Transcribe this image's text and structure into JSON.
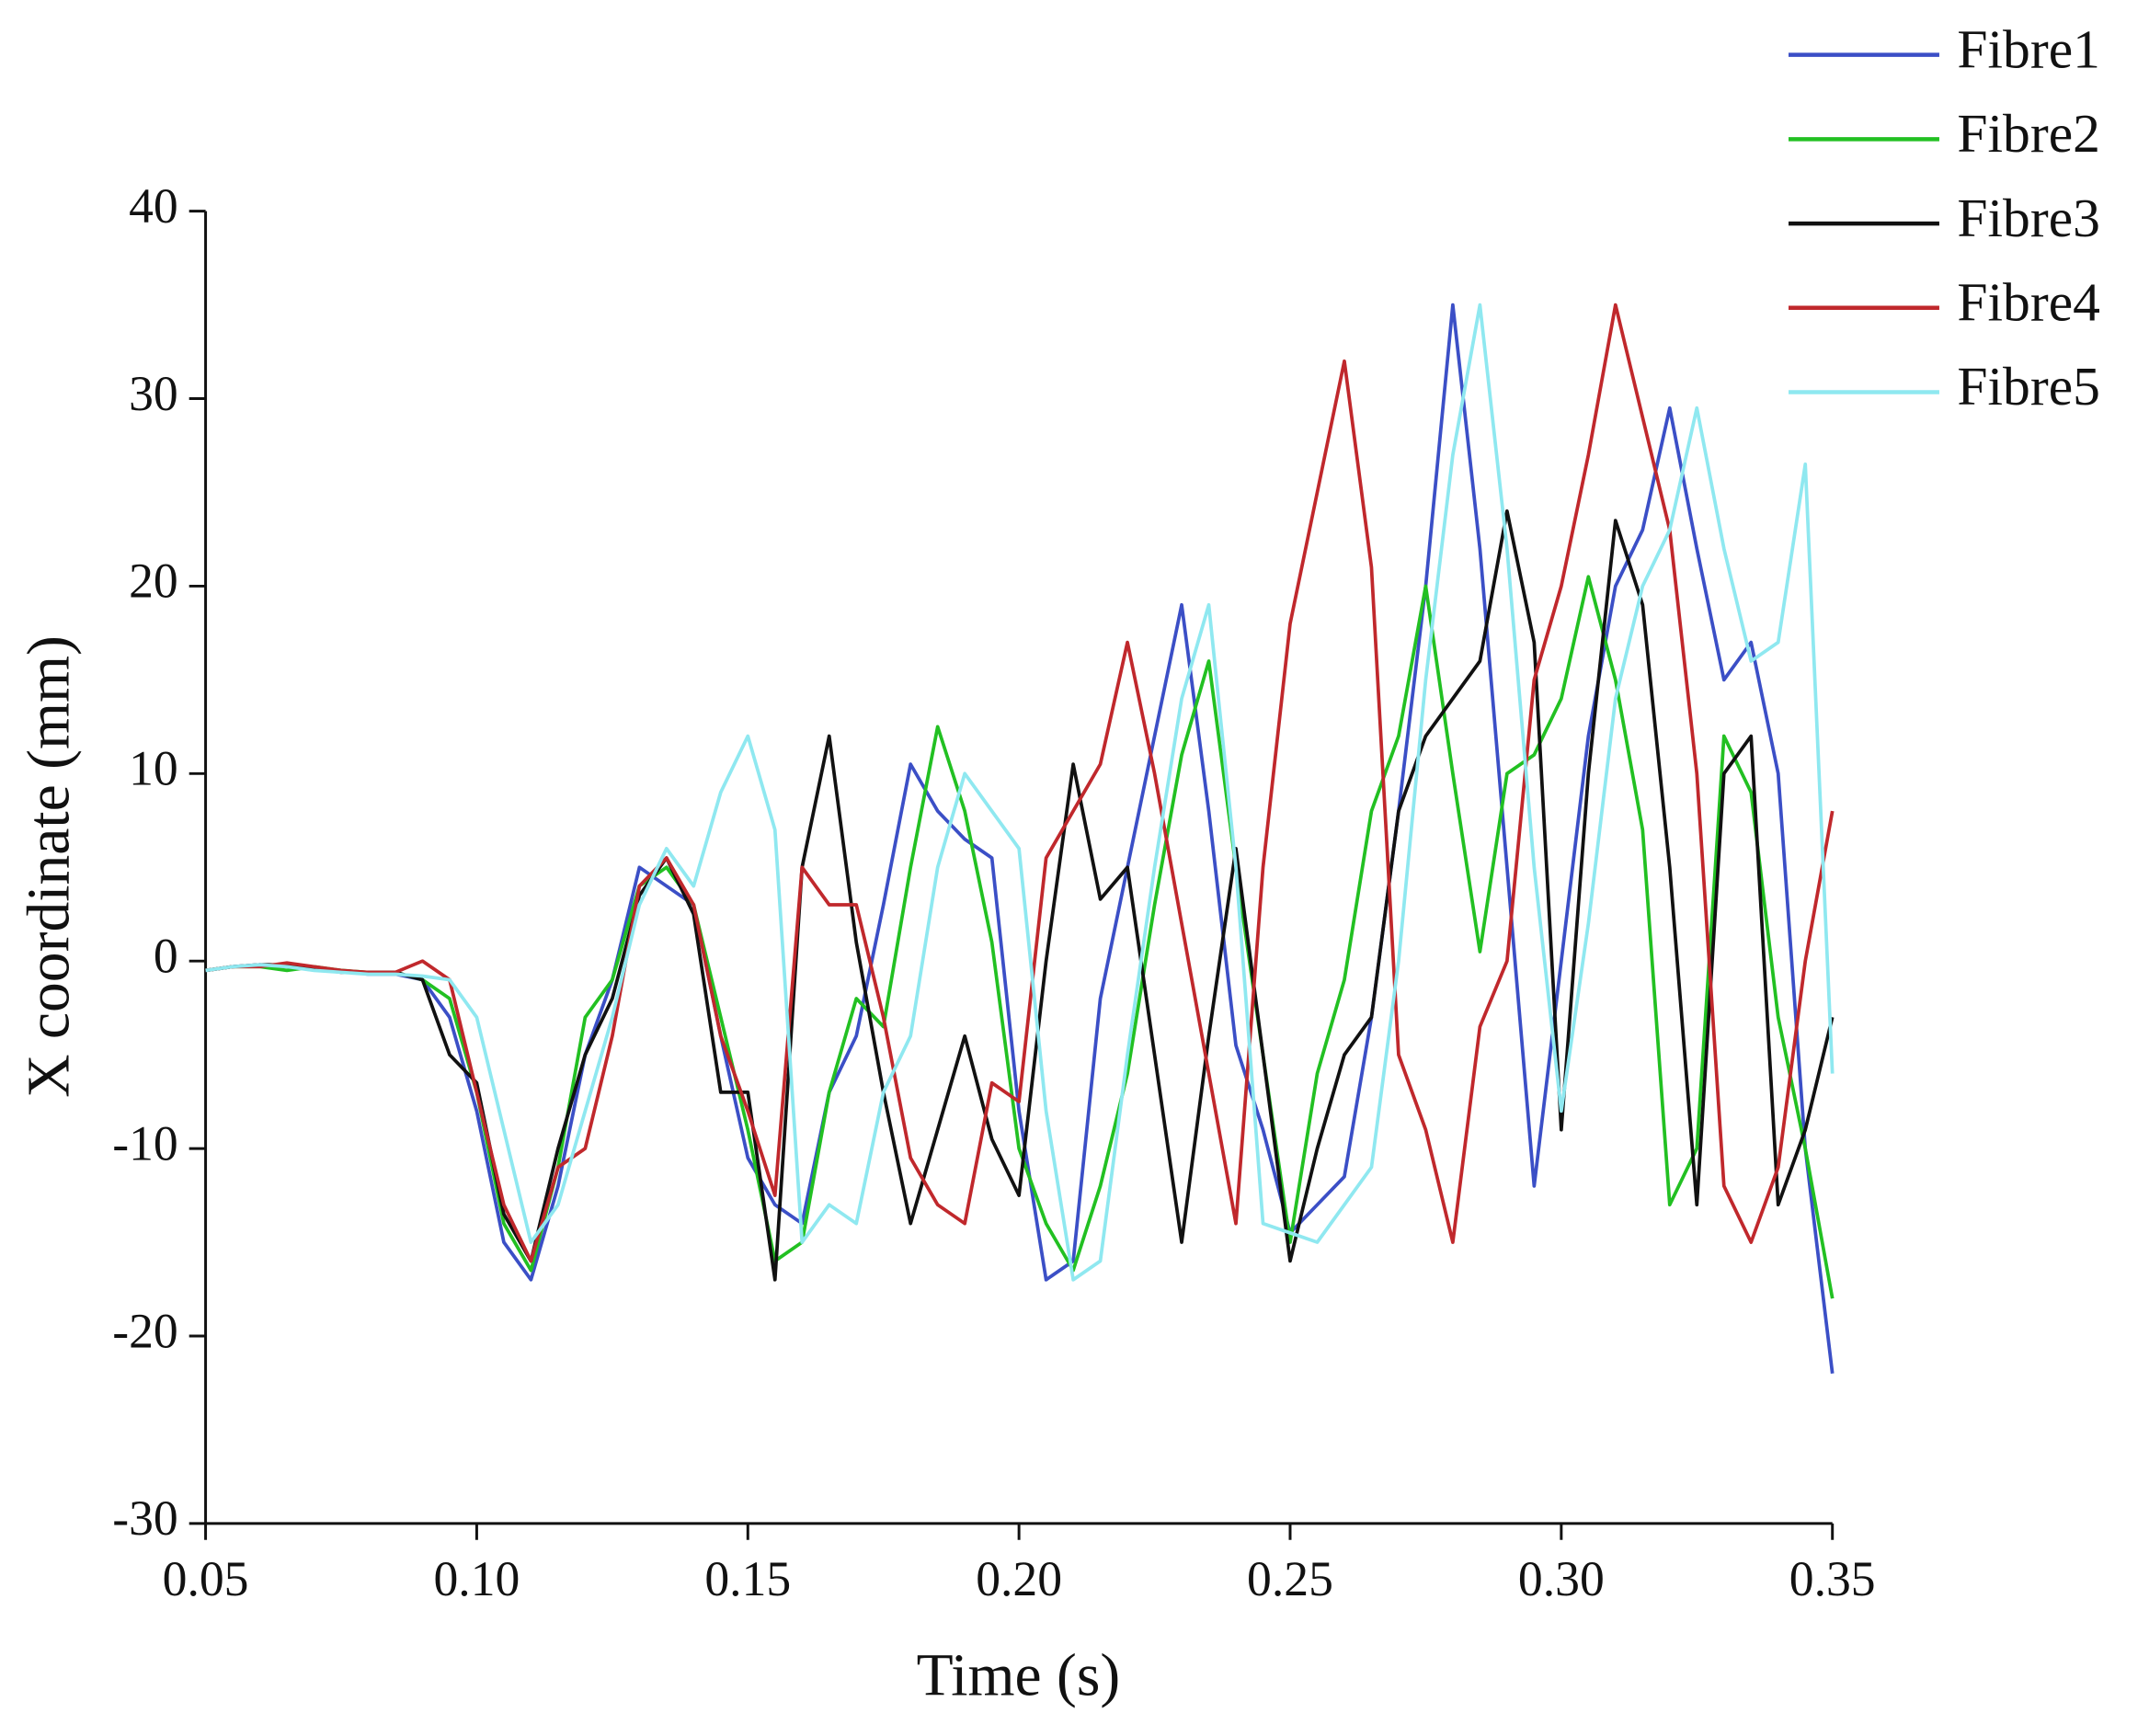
{
  "chart_data": {
    "type": "line",
    "x_label": "Time (s)",
    "y_label": "X coordinate (mm)",
    "x": [
      0.05,
      0.055,
      0.06,
      0.065,
      0.07,
      0.075,
      0.08,
      0.085,
      0.09,
      0.095,
      0.1,
      0.105,
      0.11,
      0.115,
      0.12,
      0.125,
      0.13,
      0.135,
      0.14,
      0.145,
      0.15,
      0.155,
      0.16,
      0.165,
      0.17,
      0.175,
      0.18,
      0.185,
      0.19,
      0.195,
      0.2,
      0.205,
      0.21,
      0.215,
      0.22,
      0.225,
      0.23,
      0.235,
      0.24,
      0.245,
      0.25,
      0.255,
      0.26,
      0.265,
      0.27,
      0.275,
      0.28,
      0.285,
      0.29,
      0.295,
      0.3,
      0.305,
      0.31,
      0.315,
      0.32,
      0.325,
      0.33,
      0.335,
      0.34,
      0.345,
      0.35
    ],
    "series": [
      {
        "name": "Fibre1",
        "color": "#3b4fc6",
        "values": [
          -0.5,
          -0.3,
          -0.2,
          -0.3,
          -0.4,
          -0.5,
          -0.7,
          -0.7,
          -1,
          -3,
          -8,
          -15,
          -17,
          -12,
          -5,
          -1,
          5,
          4,
          3,
          -4,
          -10.5,
          -13,
          -14,
          -7,
          -4,
          3,
          10.5,
          8,
          6.5,
          5.5,
          -8,
          -17,
          -16,
          -2,
          5,
          12,
          19,
          8,
          -4.5,
          -9,
          -14.5,
          -13,
          -11.5,
          -3,
          8,
          20,
          35,
          22,
          5,
          -12,
          0,
          12,
          20,
          23,
          29.5,
          22,
          15,
          17,
          10,
          -10,
          -22
        ]
      },
      {
        "name": "Fibre2",
        "color": "#22c022",
        "values": [
          -0.5,
          -0.3,
          -0.3,
          -0.5,
          -0.3,
          -0.5,
          -0.6,
          -0.6,
          -1,
          -2,
          -7,
          -14,
          -16.5,
          -11,
          -3,
          -1,
          4,
          5,
          3,
          -3,
          -9,
          -16,
          -15,
          -7,
          -2,
          -3.5,
          5,
          12.5,
          8,
          1,
          -10,
          -14,
          -16.5,
          -12,
          -6,
          3,
          11,
          16,
          5,
          -5,
          -15,
          -6,
          -1,
          8,
          12,
          20,
          10,
          0.5,
          10,
          11,
          14,
          20.5,
          15,
          7,
          -13,
          -10,
          12,
          9,
          -3,
          -10,
          -18
        ]
      },
      {
        "name": "Fibre3",
        "color": "#111111",
        "values": [
          -0.5,
          -0.3,
          -0.2,
          -0.2,
          -0.4,
          -0.6,
          -0.6,
          -0.6,
          -1,
          -5,
          -6.5,
          -13.5,
          -16,
          -10,
          -5,
          -2,
          3.5,
          5.5,
          2.5,
          -7,
          -7,
          -17,
          5,
          12,
          1,
          -7,
          -14,
          -9,
          -4,
          -9.5,
          -12.5,
          0,
          10.5,
          3.3,
          5,
          -5,
          -15,
          -4,
          6,
          -5,
          -16,
          -10,
          -5,
          -3,
          8,
          12,
          14,
          16,
          24,
          17,
          -9,
          10,
          23.5,
          19,
          5,
          -13,
          10,
          12,
          -13,
          -9,
          -3
        ]
      },
      {
        "name": "Fibre4",
        "color": "#c0282c",
        "values": [
          -0.5,
          -0.3,
          -0.3,
          -0.1,
          -0.3,
          -0.5,
          -0.6,
          -0.6,
          0,
          -1,
          -7,
          -13,
          -16,
          -11,
          -10,
          -4,
          4,
          5.5,
          3,
          -4,
          -8,
          -12.5,
          5,
          3,
          3,
          -3,
          -10.5,
          -13,
          -14,
          -6.5,
          -7.5,
          5.5,
          8,
          10.5,
          17,
          10,
          2,
          -6,
          -14,
          5,
          18,
          25,
          32,
          21,
          -5,
          -9,
          -15,
          -3.5,
          0,
          15,
          20,
          27,
          35,
          29,
          23,
          10,
          -12,
          -15,
          -11,
          0,
          8
        ]
      },
      {
        "name": "Fibre5",
        "color": "#8fe8f0",
        "values": [
          -0.5,
          -0.3,
          -0.2,
          -0.3,
          -0.5,
          -0.6,
          -0.7,
          -0.7,
          -0.8,
          -1,
          -3,
          -9,
          -15,
          -13,
          -8,
          -3,
          3,
          6,
          4,
          9,
          12,
          7,
          -15,
          -13,
          -14,
          -7,
          -4,
          5,
          10,
          8,
          6,
          -8,
          -17,
          -16,
          -5,
          5,
          14,
          19,
          5,
          -14,
          -14.5,
          -15,
          -13,
          -11,
          0,
          15,
          27,
          35,
          22,
          5,
          -8,
          2,
          14,
          20,
          23,
          29.5,
          22,
          16,
          17,
          26.5,
          -6
        ]
      }
    ],
    "xlim": [
      0.05,
      0.35
    ],
    "xticks": [
      0.05,
      {
        "value": 0.1,
        "label": "0.10"
      },
      0.15,
      {
        "value": 0.2,
        "label": "0.20"
      },
      0.25,
      {
        "value": 0.3,
        "label": "0.30"
      },
      0.35
    ],
    "ylim": [
      -30,
      40
    ],
    "yticks": [
      -30,
      -20,
      -10,
      0,
      10,
      20,
      30,
      40
    ],
    "legend": "top-right",
    "grid": false
  }
}
